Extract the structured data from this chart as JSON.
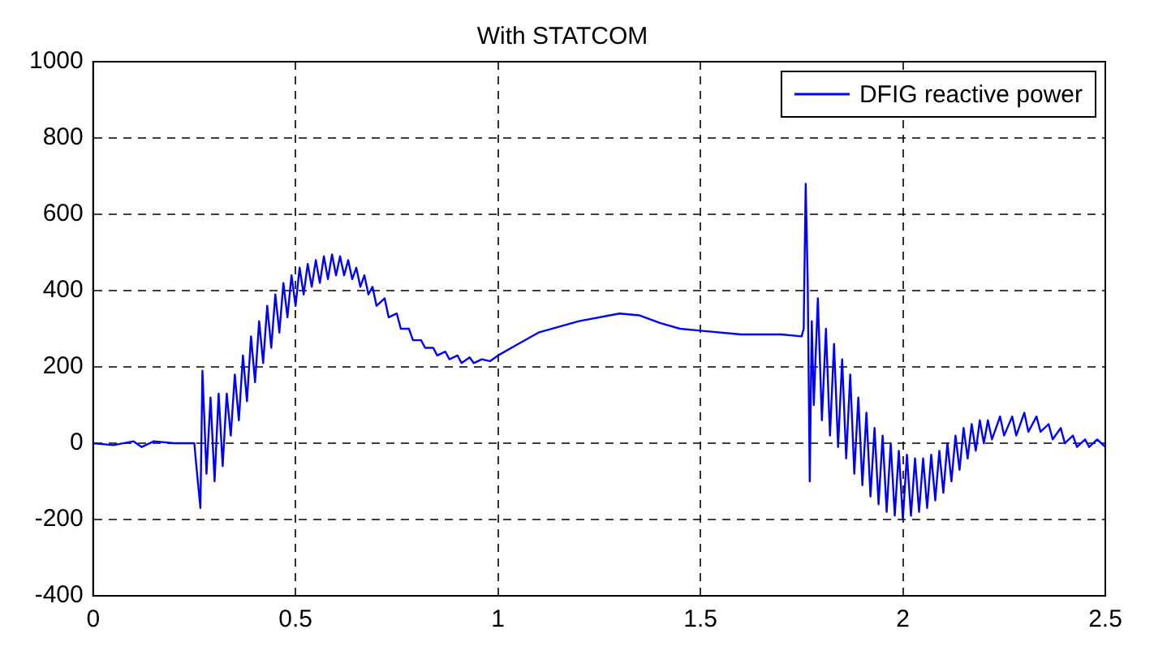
{
  "chart_data": {
    "type": "line",
    "title": "With STATCOM",
    "xlim": [
      0,
      2.5
    ],
    "ylim": [
      -400,
      1000
    ],
    "xticks": [
      0,
      0.5,
      1,
      1.5,
      2,
      2.5
    ],
    "yticks": [
      -400,
      -200,
      0,
      200,
      400,
      600,
      800,
      1000
    ],
    "grid": true,
    "legend": "top right",
    "line_style": "solid",
    "marker": "none",
    "series": [
      {
        "name": "DFIG reactive power",
        "color": "#0000ff",
        "x": [
          0,
          0.05,
          0.1,
          0.12,
          0.15,
          0.2,
          0.25,
          0.255,
          0.265,
          0.27,
          0.28,
          0.29,
          0.3,
          0.31,
          0.32,
          0.33,
          0.34,
          0.35,
          0.36,
          0.37,
          0.38,
          0.39,
          0.4,
          0.41,
          0.42,
          0.43,
          0.44,
          0.45,
          0.46,
          0.47,
          0.48,
          0.49,
          0.5,
          0.51,
          0.52,
          0.53,
          0.54,
          0.55,
          0.56,
          0.57,
          0.58,
          0.59,
          0.6,
          0.61,
          0.62,
          0.63,
          0.64,
          0.65,
          0.66,
          0.67,
          0.68,
          0.69,
          0.7,
          0.72,
          0.73,
          0.75,
          0.76,
          0.78,
          0.79,
          0.81,
          0.82,
          0.84,
          0.85,
          0.87,
          0.88,
          0.9,
          0.91,
          0.93,
          0.94,
          0.96,
          0.98,
          1.0,
          1.05,
          1.1,
          1.2,
          1.3,
          1.35,
          1.4,
          1.45,
          1.5,
          1.6,
          1.7,
          1.75,
          1.755,
          1.76,
          1.765,
          1.77,
          1.775,
          1.78,
          1.79,
          1.8,
          1.81,
          1.82,
          1.83,
          1.84,
          1.85,
          1.86,
          1.87,
          1.88,
          1.89,
          1.9,
          1.91,
          1.92,
          1.93,
          1.94,
          1.95,
          1.96,
          1.97,
          1.98,
          1.99,
          2.0,
          2.01,
          2.02,
          2.03,
          2.04,
          2.05,
          2.06,
          2.07,
          2.08,
          2.09,
          2.1,
          2.11,
          2.12,
          2.13,
          2.14,
          2.15,
          2.16,
          2.17,
          2.18,
          2.19,
          2.2,
          2.21,
          2.22,
          2.24,
          2.25,
          2.27,
          2.28,
          2.3,
          2.31,
          2.33,
          2.34,
          2.36,
          2.37,
          2.39,
          2.4,
          2.42,
          2.43,
          2.45,
          2.46,
          2.48,
          2.5
        ],
        "values": [
          0,
          -5,
          5,
          -10,
          5,
          0,
          0,
          -60,
          -170,
          190,
          -80,
          120,
          -100,
          130,
          -60,
          130,
          20,
          180,
          60,
          230,
          110,
          280,
          160,
          320,
          210,
          360,
          250,
          390,
          290,
          420,
          330,
          440,
          360,
          460,
          390,
          470,
          410,
          480,
          420,
          490,
          430,
          495,
          440,
          490,
          440,
          480,
          430,
          460,
          410,
          440,
          390,
          410,
          360,
          380,
          330,
          340,
          300,
          300,
          270,
          270,
          250,
          250,
          230,
          240,
          220,
          230,
          210,
          225,
          210,
          220,
          215,
          230,
          260,
          290,
          320,
          340,
          335,
          315,
          300,
          295,
          285,
          285,
          280,
          300,
          680,
          420,
          -100,
          320,
          100,
          380,
          60,
          300,
          20,
          260,
          -10,
          220,
          -40,
          180,
          -80,
          120,
          -110,
          80,
          -140,
          40,
          -160,
          20,
          -180,
          0,
          -190,
          -20,
          -200,
          -30,
          -190,
          -40,
          -180,
          -40,
          -170,
          -30,
          -150,
          -20,
          -130,
          0,
          -100,
          20,
          -70,
          40,
          -40,
          50,
          -20,
          60,
          0,
          60,
          10,
          70,
          20,
          70,
          20,
          80,
          30,
          70,
          30,
          50,
          10,
          40,
          0,
          20,
          -10,
          10,
          -10,
          10,
          -10
        ]
      }
    ]
  }
}
